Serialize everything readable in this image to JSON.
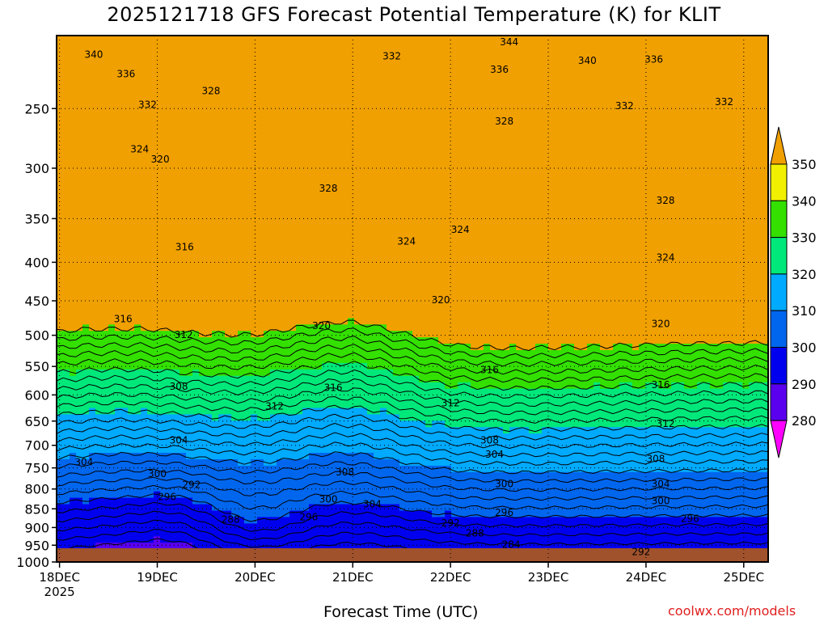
{
  "chart_data": {
    "type": "heatmap",
    "title": "2025121718 GFS Forecast Potential Temperature (K) for KLIT",
    "xlabel": "Forecast Time (UTC)",
    "ylabel": "",
    "credit": "coolwx.com/models",
    "y_axis": {
      "scale": "log-pressure (hPa), reversed",
      "range": [
        1000,
        200
      ],
      "ticks": [
        250,
        300,
        350,
        400,
        450,
        500,
        550,
        600,
        650,
        700,
        750,
        800,
        850,
        900,
        950,
        1000
      ]
    },
    "x_axis": {
      "ticks": [
        "18DEC",
        "19DEC",
        "20DEC",
        "21DEC",
        "22DEC",
        "23DEC",
        "24DEC",
        "25DEC"
      ],
      "first_tick_year": "2025",
      "range_days": [
        -0.03,
        7.25
      ]
    },
    "colorbar": {
      "levels": [
        280,
        290,
        300,
        310,
        320,
        330,
        340,
        350
      ],
      "colors": [
        "#ff00ff",
        "#aa00ff",
        "#5a00ee",
        "#0000ee",
        "#0066ee",
        "#00aaff",
        "#00e87a",
        "#33e000",
        "#f0f000",
        "#f0a000"
      ]
    },
    "ground_color": "#a0522d",
    "grid": "dotted",
    "contour_interval_K": 2,
    "labeled_contours": [
      {
        "value": "340",
        "x_day": 0.35,
        "p": 212
      },
      {
        "value": "336",
        "x_day": 0.68,
        "p": 225
      },
      {
        "value": "332",
        "x_day": 0.9,
        "p": 247
      },
      {
        "value": "328",
        "x_day": 1.55,
        "p": 237
      },
      {
        "value": "324",
        "x_day": 0.82,
        "p": 283
      },
      {
        "value": "320",
        "x_day": 1.03,
        "p": 292
      },
      {
        "value": "344",
        "x_day": 4.6,
        "p": 204
      },
      {
        "value": "332",
        "x_day": 3.4,
        "p": 213
      },
      {
        "value": "336",
        "x_day": 4.5,
        "p": 222
      },
      {
        "value": "340",
        "x_day": 5.4,
        "p": 216
      },
      {
        "value": "336",
        "x_day": 6.08,
        "p": 215
      },
      {
        "value": "328",
        "x_day": 4.55,
        "p": 260
      },
      {
        "value": "332",
        "x_day": 5.78,
        "p": 248
      },
      {
        "value": "332",
        "x_day": 6.8,
        "p": 245
      },
      {
        "value": "328",
        "x_day": 2.75,
        "p": 319
      },
      {
        "value": "328",
        "x_day": 6.2,
        "p": 331
      },
      {
        "value": "316",
        "x_day": 1.28,
        "p": 382
      },
      {
        "value": "324",
        "x_day": 3.55,
        "p": 375
      },
      {
        "value": "324",
        "x_day": 4.1,
        "p": 362
      },
      {
        "value": "324",
        "x_day": 6.2,
        "p": 394
      },
      {
        "value": "316",
        "x_day": 0.65,
        "p": 476
      },
      {
        "value": "312",
        "x_day": 1.27,
        "p": 499
      },
      {
        "value": "320",
        "x_day": 2.68,
        "p": 486
      },
      {
        "value": "320",
        "x_day": 3.9,
        "p": 449
      },
      {
        "value": "320",
        "x_day": 6.15,
        "p": 483
      },
      {
        "value": "316",
        "x_day": 4.4,
        "p": 556
      },
      {
        "value": "316",
        "x_day": 2.8,
        "p": 587
      },
      {
        "value": "316",
        "x_day": 6.15,
        "p": 582
      },
      {
        "value": "308",
        "x_day": 1.22,
        "p": 585
      },
      {
        "value": "312",
        "x_day": 2.2,
        "p": 621
      },
      {
        "value": "312",
        "x_day": 4.0,
        "p": 615
      },
      {
        "value": "312",
        "x_day": 6.2,
        "p": 655
      },
      {
        "value": "304",
        "x_day": 1.22,
        "p": 689
      },
      {
        "value": "308",
        "x_day": 4.4,
        "p": 689
      },
      {
        "value": "304",
        "x_day": 4.45,
        "p": 720
      },
      {
        "value": "308",
        "x_day": 6.1,
        "p": 730
      },
      {
        "value": "304",
        "x_day": 0.25,
        "p": 737
      },
      {
        "value": "300",
        "x_day": 1.0,
        "p": 764
      },
      {
        "value": "292",
        "x_day": 1.35,
        "p": 790
      },
      {
        "value": "308",
        "x_day": 2.92,
        "p": 760
      },
      {
        "value": "300",
        "x_day": 4.55,
        "p": 788
      },
      {
        "value": "304",
        "x_day": 6.15,
        "p": 788
      },
      {
        "value": "296",
        "x_day": 1.1,
        "p": 820
      },
      {
        "value": "300",
        "x_day": 2.75,
        "p": 826
      },
      {
        "value": "304",
        "x_day": 3.2,
        "p": 838
      },
      {
        "value": "296",
        "x_day": 2.55,
        "p": 872
      },
      {
        "value": "296",
        "x_day": 4.55,
        "p": 860
      },
      {
        "value": "300",
        "x_day": 6.15,
        "p": 830
      },
      {
        "value": "296",
        "x_day": 6.45,
        "p": 876
      },
      {
        "value": "288",
        "x_day": 1.75,
        "p": 878
      },
      {
        "value": "292",
        "x_day": 4.0,
        "p": 888
      },
      {
        "value": "288",
        "x_day": 4.25,
        "p": 916
      },
      {
        "value": "284",
        "x_day": 4.62,
        "p": 948
      },
      {
        "value": "292",
        "x_day": 5.95,
        "p": 969
      }
    ]
  }
}
